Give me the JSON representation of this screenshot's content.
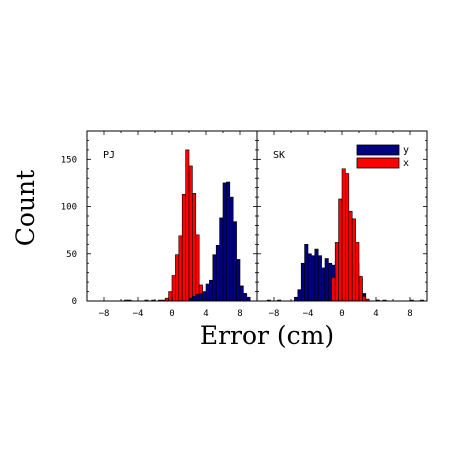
{
  "chart_data": {
    "type": "bar",
    "xlabel": "Error (cm)",
    "ylabel": "Count",
    "ylim": [
      0,
      180
    ],
    "yticks": [
      0,
      50,
      100,
      150
    ],
    "xticks": [
      -8,
      -4,
      0,
      4,
      8
    ],
    "bin_width": 0.4,
    "legend": {
      "placement": "top-right",
      "entries": [
        {
          "label": "y",
          "color": "#000080"
        },
        {
          "label": "x",
          "color": "#ff0000"
        }
      ]
    },
    "panels": [
      {
        "label": "PJ",
        "xlim": [
          -10,
          10
        ],
        "series": [
          {
            "name": "x",
            "color": "#ff0000",
            "x": [
              -5.4,
              -5.0,
              -3.0,
              -2.2,
              -1.4,
              -1.0,
              -0.6,
              -0.2,
              0.2,
              0.6,
              1.0,
              1.4,
              1.8,
              2.2,
              2.6,
              3.0,
              3.4
            ],
            "values": [
              1,
              1,
              1,
              1,
              1,
              1,
              3,
              10,
              27,
              49,
              69,
              113,
              160,
              143,
              114,
              70,
              17
            ]
          },
          {
            "name": "y",
            "color": "#000080",
            "x": [
              2.2,
              2.6,
              3.0,
              3.4,
              3.8,
              4.2,
              4.6,
              5.0,
              5.4,
              5.8,
              6.2,
              6.6,
              7.0,
              7.4,
              7.8,
              8.2,
              8.6,
              9.0
            ],
            "values": [
              3,
              5,
              7,
              8,
              10,
              18,
              22,
              49,
              59,
              88,
              125,
              126,
              110,
              84,
              44,
              16,
              8,
              4
            ]
          }
        ]
      },
      {
        "label": "SK",
        "xlim": [
          -10,
          10
        ],
        "series": [
          {
            "name": "y",
            "color": "#000080",
            "x": [
              -8.6,
              -7.4,
              -5.4,
              -5.0,
              -4.6,
              -4.2,
              -3.8,
              -3.4,
              -3.0,
              -2.6,
              -2.2,
              -1.8,
              -1.4,
              -1.0,
              -0.6,
              -0.2,
              0.2,
              0.6,
              1.0,
              1.4,
              1.8,
              2.2,
              2.6
            ],
            "values": [
              1,
              1,
              4,
              12,
              40,
              60,
              50,
              48,
              55,
              48,
              35,
              45,
              40,
              38,
              42,
              40,
              50,
              40,
              42,
              45,
              40,
              24,
              8
            ]
          },
          {
            "name": "x",
            "color": "#ff0000",
            "x": [
              -1.0,
              -0.6,
              -0.2,
              0.2,
              0.6,
              1.0,
              1.4,
              1.8,
              2.2,
              2.6,
              3.0,
              4.2,
              5.0,
              8.2,
              9.4
            ],
            "values": [
              25,
              62,
              108,
              140,
              135,
              95,
              87,
              62,
              26,
              5,
              2,
              1,
              1,
              1,
              1
            ]
          }
        ]
      }
    ]
  }
}
